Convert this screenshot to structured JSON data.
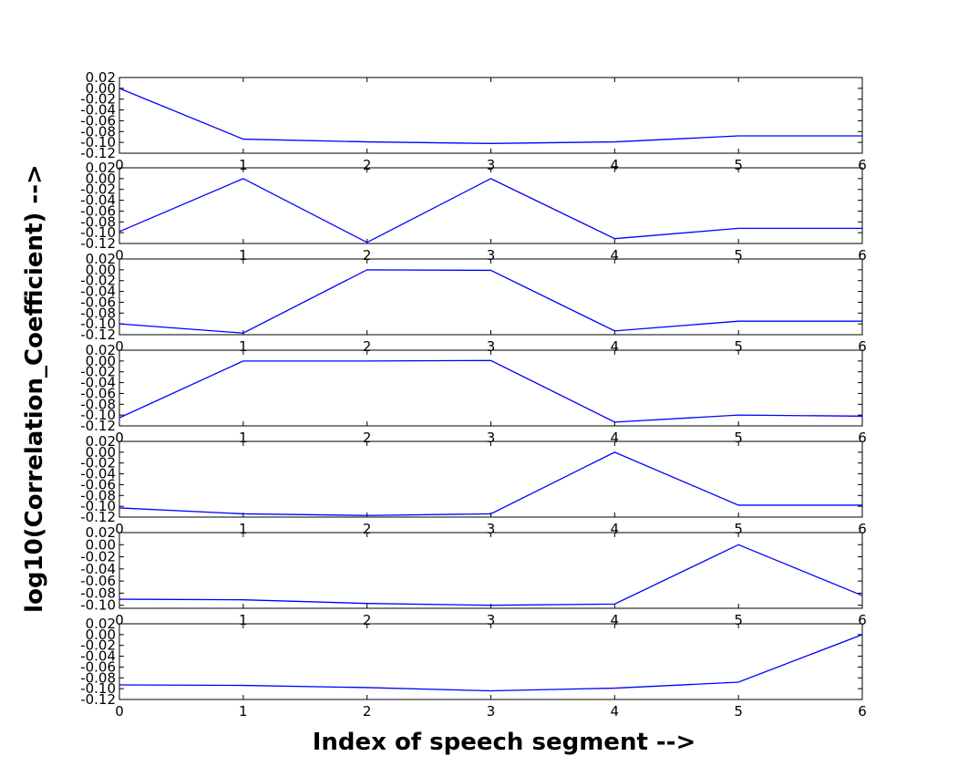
{
  "chart_data": {
    "type": "line",
    "xlabel": "Index of speech segment -->",
    "ylabel": "log10(Correlation_Coefficient) -->",
    "x": [
      0,
      1,
      2,
      3,
      4,
      5,
      6
    ],
    "x_ticks": [
      "0",
      "1",
      "2",
      "3",
      "4",
      "5",
      "6"
    ],
    "line_color": "#0000ff",
    "grid": false,
    "subplots": [
      {
        "ylim": [
          -0.12,
          0.02
        ],
        "y_ticks": [
          "0.02",
          "0.00",
          "-0.02",
          "-0.04",
          "-0.06",
          "-0.08",
          "-0.10",
          "-0.12"
        ],
        "values": [
          0.0,
          -0.094,
          -0.099,
          -0.102,
          -0.099,
          -0.088,
          -0.088
        ]
      },
      {
        "ylim": [
          -0.12,
          0.02
        ],
        "y_ticks": [
          "0.02",
          "0.00",
          "-0.02",
          "-0.04",
          "-0.06",
          "-0.08",
          "-0.10",
          "-0.12"
        ],
        "values": [
          -0.098,
          0.0,
          -0.118,
          0.0,
          -0.111,
          -0.092,
          -0.092
        ]
      },
      {
        "ylim": [
          -0.12,
          0.02
        ],
        "y_ticks": [
          "0.02",
          "0.00",
          "-0.02",
          "-0.04",
          "-0.06",
          "-0.08",
          "-0.10",
          "-0.12"
        ],
        "values": [
          -0.1,
          -0.117,
          0.0,
          -0.001,
          -0.113,
          -0.095,
          -0.095
        ]
      },
      {
        "ylim": [
          -0.12,
          0.02
        ],
        "y_ticks": [
          "0.02",
          "0.00",
          "-0.02",
          "-0.04",
          "-0.06",
          "-0.08",
          "-0.10",
          "-0.12"
        ],
        "values": [
          -0.105,
          0.0,
          0.0,
          0.001,
          -0.113,
          -0.1,
          -0.102
        ]
      },
      {
        "ylim": [
          -0.12,
          0.02
        ],
        "y_ticks": [
          "0.02",
          "0.00",
          "-0.02",
          "-0.04",
          "-0.06",
          "-0.08",
          "-0.10",
          "-0.12"
        ],
        "values": [
          -0.103,
          -0.114,
          -0.117,
          -0.114,
          0.0,
          -0.098,
          -0.098
        ]
      },
      {
        "ylim": [
          -0.105,
          0.02
        ],
        "y_ticks": [
          "0.02",
          "0.00",
          "-0.02",
          "-0.04",
          "-0.06",
          "-0.08",
          "-0.10"
        ],
        "values": [
          -0.09,
          -0.091,
          -0.097,
          -0.1,
          -0.098,
          0.0,
          -0.084
        ]
      },
      {
        "ylim": [
          -0.12,
          0.02
        ],
        "y_ticks": [
          "0.02",
          "0.00",
          "-0.02",
          "-0.04",
          "-0.06",
          "-0.08",
          "-0.10",
          "-0.12"
        ],
        "values": [
          -0.093,
          -0.094,
          -0.098,
          -0.104,
          -0.099,
          -0.088,
          0.0
        ]
      }
    ]
  }
}
